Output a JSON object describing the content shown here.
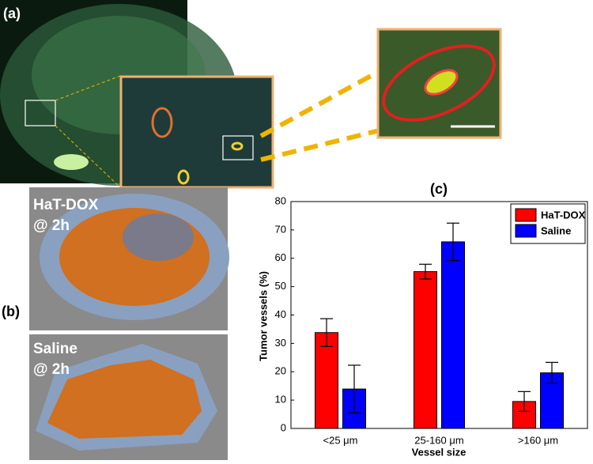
{
  "panel_labels": [
    "(a)",
    "(b)"
  ],
  "image_labels": [
    [
      "HaT-DOX",
      "@ 2h"
    ],
    [
      "Saline",
      "@ 2h"
    ]
  ],
  "chart_data": {
    "type": "bar",
    "title": "(c)",
    "xlabel": "Vessel size",
    "ylabel": "Tumor vessels (%)",
    "categories": [
      "<25 μm",
      "25-160 μm",
      ">160 μm"
    ],
    "series": [
      {
        "name": "HaT-DOX",
        "color": "#ff0000",
        "values": [
          33.8,
          55.3,
          9.5
        ],
        "errors": [
          4.9,
          2.6,
          3.5
        ]
      },
      {
        "name": "Saline",
        "color": "#0000ff",
        "values": [
          13.9,
          65.8,
          19.6
        ],
        "errors": [
          8.4,
          6.6,
          3.7
        ]
      }
    ],
    "ylim": [
      0,
      80
    ],
    "yticks": [
      0,
      10,
      20,
      30,
      40,
      50,
      60,
      70,
      80
    ],
    "grid": false,
    "legend": "upper right"
  }
}
